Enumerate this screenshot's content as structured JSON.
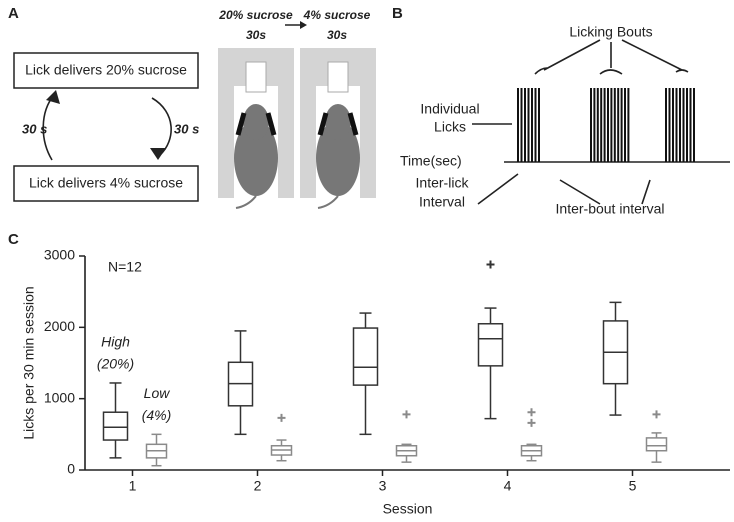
{
  "panel_a": {
    "letter": "A",
    "box_top": "Lick delivers 20% sucrose",
    "box_bottom": "Lick delivers 4% sucrose",
    "left_interval": "30 s",
    "right_interval": "30 s",
    "mouse_left_title": "20% sucrose",
    "mouse_left_time": "30s",
    "mouse_right_title": "4% sucrose",
    "mouse_right_time": "30s"
  },
  "panel_b": {
    "letter": "B",
    "bouts": "Licking Bouts",
    "licks_1": "Individual",
    "licks_2": "Licks",
    "time": "Time(sec)",
    "ili_1": "Inter-lick",
    "ili_2": "Interval",
    "ibi": "Inter-bout interval"
  },
  "chart_data": {
    "type": "box",
    "letter": "C",
    "annotation": "N=12",
    "x_label": "Session",
    "y_label": "Licks per 30 min session",
    "x": [
      1,
      2,
      3,
      4,
      5
    ],
    "xlim": [
      0.62,
      5.78
    ],
    "xticks": [
      1,
      2,
      3,
      4,
      5
    ],
    "ylim": [
      0,
      3000
    ],
    "yticks": [
      0,
      1000,
      2000,
      3000
    ],
    "series": [
      {
        "name": "High",
        "note": "(20%)",
        "color": "#333333",
        "boxes": [
          {
            "whislo": 170,
            "q1": 420,
            "med": 600,
            "q3": 810,
            "whishi": 1220,
            "fliers": []
          },
          {
            "whislo": 500,
            "q1": 900,
            "med": 1210,
            "q3": 1510,
            "whishi": 1950,
            "fliers": []
          },
          {
            "whislo": 500,
            "q1": 1190,
            "med": 1440,
            "q3": 1990,
            "whishi": 2200,
            "fliers": []
          },
          {
            "whislo": 720,
            "q1": 1460,
            "med": 1840,
            "q3": 2050,
            "whishi": 2270,
            "fliers": [
              2880
            ]
          },
          {
            "whislo": 770,
            "q1": 1210,
            "med": 1650,
            "q3": 2090,
            "whishi": 2350,
            "fliers": []
          }
        ]
      },
      {
        "name": "Low",
        "note": "(4%)",
        "color": "#8a8a8a",
        "boxes": [
          {
            "whislo": 60,
            "q1": 170,
            "med": 270,
            "q3": 360,
            "whishi": 500,
            "fliers": []
          },
          {
            "whislo": 130,
            "q1": 210,
            "med": 280,
            "q3": 340,
            "whishi": 420,
            "fliers": [
              730
            ]
          },
          {
            "whislo": 110,
            "q1": 200,
            "med": 270,
            "q3": 340,
            "whishi": 360,
            "fliers": [
              780
            ]
          },
          {
            "whislo": 130,
            "q1": 200,
            "med": 270,
            "q3": 340,
            "whishi": 360,
            "fliers": [
              660,
              810
            ]
          },
          {
            "whislo": 110,
            "q1": 270,
            "med": 340,
            "q3": 450,
            "whishi": 520,
            "fliers": [
              780
            ]
          }
        ]
      }
    ]
  }
}
